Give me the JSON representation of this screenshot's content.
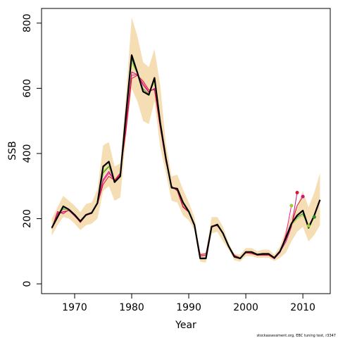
{
  "chart_data": {
    "type": "line",
    "xlabel": "Year",
    "ylabel": "SSB",
    "xlim": [
      1964.2,
      2014.8
    ],
    "ylim": [
      -30,
      845
    ],
    "x_ticks": [
      1970,
      1980,
      1990,
      2000,
      2010
    ],
    "y_ticks": [
      0,
      200,
      400,
      600,
      800
    ],
    "grid": false,
    "credit": "stockassessment.org, EBC tuning test, r3347",
    "colors": {
      "band": "#f5deb3",
      "main": "#000000",
      "retro_1": "#dc143c",
      "retro_2": "#c71585",
      "retro_3": "#ff1493",
      "retro_4": "#9acd32",
      "retro_5": "#228b22"
    },
    "confidence_band": {
      "x": [
        1966,
        1967,
        1968,
        1969,
        1970,
        1971,
        1972,
        1973,
        1974,
        1975,
        1976,
        1977,
        1978,
        1979,
        1980,
        1981,
        1982,
        1983,
        1984,
        1985,
        1986,
        1987,
        1988,
        1989,
        1990,
        1991,
        1992,
        1993,
        1994,
        1995,
        1996,
        1997,
        1998,
        1999,
        2000,
        2001,
        2002,
        2003,
        2004,
        2005,
        2006,
        2007,
        2008,
        2009,
        2010,
        2011,
        2012,
        2013
      ],
      "lower": [
        148,
        180,
        205,
        200,
        185,
        165,
        180,
        185,
        200,
        285,
        300,
        255,
        265,
        450,
        600,
        560,
        500,
        490,
        560,
        420,
        340,
        255,
        250,
        210,
        195,
        165,
        68,
        65,
        155,
        160,
        130,
        105,
        72,
        68,
        85,
        85,
        80,
        80,
        80,
        70,
        80,
        95,
        130,
        160,
        175,
        130,
        150,
        180
      ],
      "upper": [
        200,
        235,
        270,
        255,
        240,
        220,
        245,
        250,
        290,
        425,
        435,
        360,
        370,
        575,
        818,
        760,
        680,
        665,
        720,
        610,
        430,
        330,
        335,
        290,
        250,
        205,
        95,
        95,
        205,
        205,
        175,
        125,
        92,
        90,
        110,
        110,
        100,
        105,
        105,
        90,
        115,
        165,
        210,
        240,
        285,
        235,
        280,
        340
      ]
    },
    "series": [
      {
        "x": [
          1966,
          1967,
          1968,
          1969,
          1970,
          1971,
          1972,
          1973,
          1974,
          1975,
          1976,
          1977,
          1978,
          1979,
          1980,
          1981,
          1982,
          1983,
          1984,
          1985,
          1986,
          1987,
          1988,
          1989,
          1990,
          1991,
          1992,
          1993,
          1994,
          1995,
          1996,
          1997,
          1998,
          1999,
          2000,
          2001,
          2002,
          2003,
          2004,
          2005,
          2006,
          2007,
          2008,
          2009,
          2010,
          2011,
          2012,
          2013
        ],
        "values": [
          172,
          205,
          238,
          228,
          212,
          192,
          212,
          218,
          248,
          360,
          375,
          312,
          330,
          520,
          702,
          648,
          590,
          580,
          632,
          495,
          385,
          295,
          292,
          250,
          222,
          180,
          78,
          78,
          175,
          182,
          155,
          115,
          83,
          78,
          98,
          98,
          90,
          92,
          92,
          80,
          100,
          140,
          185,
          210,
          225,
          172,
          210,
          258
        ]
      },
      {
        "x": [
          1966,
          1967,
          1968,
          1969,
          1970,
          1971,
          1972,
          1973,
          1974,
          1975,
          1976,
          1977,
          1978,
          1979,
          1980,
          1981,
          1982,
          1983,
          1984,
          1985,
          1986,
          1987,
          1988,
          1989,
          1990,
          1991,
          1992,
          1993,
          1994,
          1995,
          1996,
          1997,
          1998,
          1999,
          2000,
          2001,
          2002,
          2003,
          2004,
          2005,
          2006,
          2007,
          2008,
          2009,
          2010
        ],
        "values": [
          170,
          222,
          215,
          228,
          210,
          188,
          210,
          218,
          245,
          305,
          330,
          318,
          340,
          470,
          630,
          640,
          622,
          595,
          595,
          480,
          375,
          300,
          285,
          235,
          220,
          180,
          90,
          92,
          178,
          178,
          157,
          115,
          88,
          80,
          95,
          93,
          88,
          88,
          88,
          78,
          100,
          135,
          180,
          240,
          268
        ]
      },
      {
        "x": [
          1966,
          1967,
          1968,
          1969,
          1970,
          1971,
          1972,
          1973,
          1974,
          1975,
          1976,
          1977,
          1978,
          1979,
          1980,
          1981,
          1982,
          1983,
          1984,
          1985,
          1986,
          1987,
          1988,
          1989,
          1990,
          1991,
          1992,
          1993,
          1994,
          1995,
          1996,
          1997,
          1998,
          1999,
          2000,
          2001,
          2002,
          2003,
          2004,
          2005,
          2006,
          2007,
          2008,
          2009
        ],
        "values": [
          172,
          218,
          220,
          225,
          208,
          190,
          210,
          216,
          246,
          320,
          345,
          315,
          335,
          490,
          650,
          642,
          610,
          588,
          600,
          485,
          380,
          298,
          288,
          238,
          220,
          180,
          85,
          88,
          176,
          180,
          156,
          115,
          85,
          79,
          95,
          94,
          88,
          89,
          89,
          77,
          98,
          128,
          175,
          280
        ]
      },
      {
        "x": [
          1966,
          1967,
          1968,
          1969,
          1970,
          1971,
          1972,
          1973,
          1974,
          1975,
          1976,
          1977,
          1978,
          1979,
          1980,
          1981,
          1982,
          1983,
          1984,
          1985,
          1986,
          1987,
          1988,
          1989,
          1990,
          1991,
          1992,
          1993,
          1994,
          1995,
          1996,
          1997,
          1998,
          1999,
          2000,
          2001,
          2002,
          2003,
          2004,
          2005,
          2006,
          2007,
          2008
        ],
        "values": [
          170,
          215,
          222,
          225,
          208,
          190,
          210,
          216,
          246,
          315,
          340,
          318,
          338,
          480,
          640,
          642,
          615,
          590,
          598,
          482,
          378,
          298,
          287,
          236,
          220,
          180,
          86,
          88,
          176,
          179,
          156,
          115,
          86,
          79,
          95,
          94,
          88,
          88,
          88,
          77,
          96,
          150,
          240
        ]
      },
      {
        "x": [
          1966,
          1967,
          1968,
          1969,
          1970,
          1971,
          1972,
          1973,
          1974,
          1975,
          1976,
          1977,
          1978,
          1979,
          1980,
          1981,
          1982,
          1983,
          1984,
          1985,
          1986,
          1987,
          1988,
          1989,
          1990,
          1991,
          1992,
          1993,
          1994,
          1995,
          1996,
          1997,
          1998,
          1999,
          2000,
          2001,
          2002,
          2003,
          2004,
          2005,
          2006,
          2007,
          2008,
          2009,
          2010,
          2011,
          2012
        ],
        "values": [
          172,
          210,
          232,
          226,
          210,
          190,
          211,
          217,
          247,
          345,
          362,
          314,
          332,
          505,
          680,
          645,
          600,
          584,
          620,
          490,
          382,
          296,
          290,
          245,
          221,
          180,
          80,
          80,
          175,
          181,
          155,
          115,
          84,
          78,
          97,
          96,
          89,
          91,
          91,
          79,
          99,
          140,
          180,
          200,
          210,
          180,
          205
        ]
      },
      {
        "x": [
          1966,
          1967,
          1968,
          1969,
          1970,
          1971,
          1972,
          1973,
          1974,
          1975,
          1976,
          1977,
          1978,
          1979,
          1980,
          1981,
          1982,
          1983,
          1984,
          1985,
          1986,
          1987,
          1988,
          1989,
          1990,
          1991,
          1992,
          1993,
          1994,
          1995,
          1996,
          1997,
          1998,
          1999,
          2000,
          2001,
          2002,
          2003,
          2004,
          2005,
          2006,
          2007,
          2008,
          2009,
          2010,
          2011
        ],
        "values": [
          171,
          212,
          230,
          227,
          210,
          191,
          211,
          217,
          247,
          340,
          360,
          315,
          333,
          510,
          690,
          646,
          598,
          583,
          625,
          492,
          383,
          296,
          290,
          246,
          221,
          180,
          80,
          80,
          175,
          181,
          155,
          115,
          84,
          78,
          97,
          96,
          89,
          91,
          91,
          79,
          99,
          145,
          185,
          205,
          215,
          178
        ]
      }
    ],
    "endpoints": [
      {
        "x": 2008,
        "y": 240,
        "series": 4
      },
      {
        "x": 2009,
        "y": 280,
        "series": 1
      },
      {
        "x": 2010,
        "y": 268,
        "series": 2
      },
      {
        "x": 2011,
        "y": 178,
        "series": 4
      },
      {
        "x": 2012,
        "y": 205,
        "series": 5
      }
    ]
  }
}
